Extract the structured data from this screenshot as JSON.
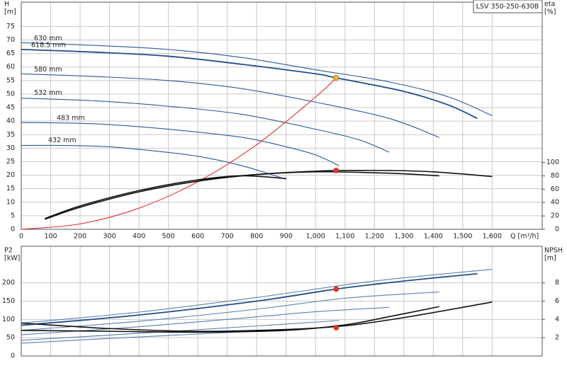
{
  "chart_data": [
    {
      "type": "line",
      "title": "LSV 350-250-630B",
      "ylabel": [
        "H",
        "[m]"
      ],
      "y2label": [
        "eta",
        "[%]"
      ],
      "xlabel": "Q [m³/h]",
      "xlim": [
        0,
        1770
      ],
      "ylim": [
        0,
        84
      ],
      "y2lim": [
        0,
        340
      ],
      "xticks": [
        0,
        100,
        200,
        300,
        400,
        500,
        600,
        700,
        800,
        900,
        {
          "value": 1000,
          "label": "1,000"
        },
        {
          "value": 1100,
          "label": "1,100"
        },
        {
          "value": 1200,
          "label": "1,200"
        },
        {
          "value": 1300,
          "label": "1,300"
        },
        {
          "value": 1400,
          "label": "1,400"
        },
        {
          "value": 1500,
          "label": "1,500"
        },
        {
          "value": 1600,
          "label": "1,600"
        }
      ],
      "yticks": [
        0,
        5,
        10,
        15,
        20,
        25,
        30,
        35,
        40,
        45,
        50,
        55,
        60,
        65,
        70,
        75
      ],
      "y2ticks": [
        0,
        20,
        40,
        60,
        80,
        100
      ],
      "grid": true,
      "series": [
        {
          "name": "630 mm",
          "color": "#2a5a96",
          "x": [
            0,
            250,
            500,
            750,
            1000,
            1250,
            1450,
            1600
          ],
          "values": [
            69,
            68,
            66.5,
            63.5,
            59,
            54.5,
            49,
            42
          ]
        },
        {
          "name": "618.5 mm",
          "color": "#1f4e8c",
          "x": [
            0,
            250,
            500,
            750,
            1000,
            1070,
            1300,
            1450,
            1550
          ],
          "values": [
            66.5,
            65.5,
            64,
            61,
            57.5,
            56,
            51,
            46,
            41
          ]
        },
        {
          "name": "580 mm",
          "color": "#2a5a96",
          "x": [
            0,
            250,
            500,
            750,
            1000,
            1250,
            1420
          ],
          "values": [
            57.5,
            56.5,
            55,
            52,
            47,
            41,
            34
          ]
        },
        {
          "name": "532 mm",
          "color": "#2a5a96",
          "x": [
            0,
            250,
            500,
            750,
            1000,
            1150,
            1250
          ],
          "values": [
            48.5,
            47.5,
            45.5,
            42.5,
            37,
            33,
            28.5
          ]
        },
        {
          "name": "483 mm",
          "color": "#2a5a96",
          "x": [
            0,
            250,
            500,
            750,
            900,
            1000,
            1080
          ],
          "values": [
            39.5,
            39,
            37,
            34,
            30.5,
            27.5,
            23.5
          ]
        },
        {
          "name": "432 mm",
          "color": "#2a5a96",
          "x": [
            0,
            150,
            300,
            450,
            600,
            750,
            900
          ],
          "values": [
            31,
            31,
            30.5,
            29,
            27,
            23.5,
            18.5
          ]
        },
        {
          "color": "#e83030",
          "x": [
            0,
            200,
            400,
            600,
            800,
            1000,
            1070
          ],
          "values": [
            0,
            2,
            7.8,
            17.6,
            31.3,
            48.9,
            56
          ]
        },
        {
          "color": "#111111",
          "axis": "y2",
          "x": [
            80,
            200,
            400,
            600,
            800,
            1000,
            1100,
            1250,
            1400,
            1600
          ],
          "values": [
            15,
            33,
            56,
            72,
            82,
            87,
            88,
            88,
            86,
            79
          ]
        },
        {
          "color": "#111111",
          "axis": "y2",
          "x": [
            80,
            200,
            400,
            600,
            750,
            900
          ],
          "values": [
            16,
            35,
            58,
            74,
            80,
            76
          ]
        },
        {
          "color": "#111111",
          "axis": "y2",
          "x": [
            600,
            800,
            1000,
            1250,
            1420
          ],
          "values": [
            74,
            82,
            86,
            84,
            80
          ]
        },
        {
          "color": "#f5c518",
          "marker": true,
          "x": [
            1070
          ],
          "values": [
            56
          ]
        },
        {
          "color": "#e83030",
          "marker": true,
          "axis": "y2",
          "x": [
            1070
          ],
          "values": [
            88
          ]
        }
      ]
    },
    {
      "type": "line",
      "ylabel": [
        "P2",
        "[kW]"
      ],
      "y2label": [
        "NPSH",
        "[m]"
      ],
      "xlim": [
        0,
        1770
      ],
      "ylim": [
        0,
        300
      ],
      "y2lim": [
        0,
        12
      ],
      "xticks": [
        0,
        100,
        200,
        300,
        400,
        500,
        600,
        700,
        800,
        900,
        1000,
        1100,
        1200,
        1300,
        1400,
        1500,
        1600
      ],
      "yticks": [
        0,
        50,
        100,
        150,
        200
      ],
      "y2ticks": [
        2,
        4,
        6,
        8
      ],
      "grid": true,
      "series": [
        {
          "color": "#5a7fb0",
          "x": [
            0,
            400,
            800,
            1200,
            1600
          ],
          "values": [
            90,
            120,
            160,
            205,
            237
          ]
        },
        {
          "color": "#1f4e8c",
          "x": [
            0,
            400,
            800,
            1070,
            1300,
            1550
          ],
          "values": [
            84,
            112,
            150,
            183,
            205,
            225
          ]
        },
        {
          "color": "#5a7fb0",
          "x": [
            0,
            400,
            800,
            1100,
            1420
          ],
          "values": [
            70,
            95,
            128,
            158,
            175
          ]
        },
        {
          "color": "#5a7fb0",
          "x": [
            0,
            400,
            800,
            1000,
            1250
          ],
          "values": [
            58,
            80,
            107,
            121,
            133
          ]
        },
        {
          "color": "#5a7fb0",
          "x": [
            0,
            400,
            800,
            1080
          ],
          "values": [
            43,
            62,
            82,
            97
          ]
        },
        {
          "color": "#5a7fb0",
          "x": [
            0,
            300,
            600,
            900
          ],
          "values": [
            35,
            48,
            60,
            72
          ]
        },
        {
          "color": "#111111",
          "axis": "y2",
          "x": [
            0,
            300,
            600,
            900,
            1100,
            1300,
            1600
          ],
          "values": [
            3.6,
            3.0,
            2.7,
            2.9,
            3.3,
            4.2,
            5.9
          ]
        },
        {
          "color": "#111111",
          "axis": "y2",
          "x": [
            0,
            300,
            600,
            900,
            1100,
            1250,
            1420
          ],
          "values": [
            2.8,
            2.7,
            2.6,
            2.8,
            3.4,
            4.3,
            5.4
          ]
        },
        {
          "color": "#e83030",
          "marker": true,
          "x": [
            1070
          ],
          "values": [
            183
          ]
        },
        {
          "color": "#e83030",
          "marker": true,
          "axis": "y2",
          "x": [
            1070
          ],
          "values": [
            3.1
          ]
        }
      ]
    }
  ]
}
